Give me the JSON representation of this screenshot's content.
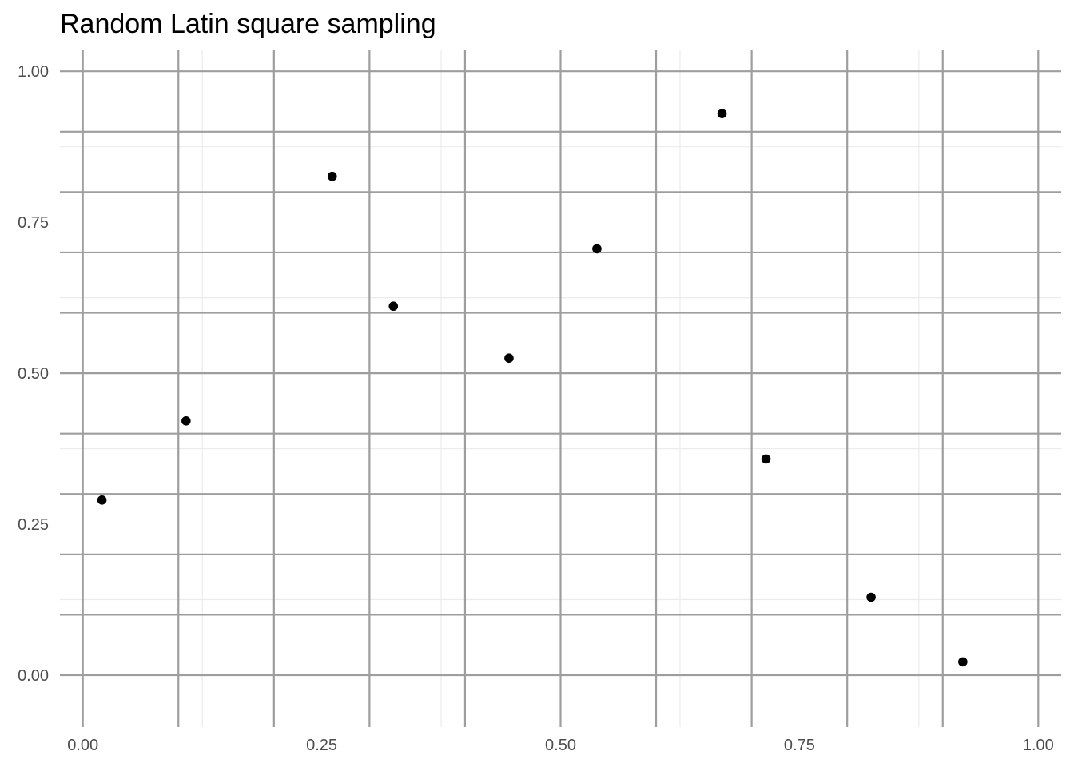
{
  "chart_data": {
    "type": "scatter",
    "title": "Random Latin square sampling",
    "xlabel": "",
    "ylabel": "",
    "xlim": [
      -0.024,
      1.024
    ],
    "ylim": [
      -0.086,
      1.036
    ],
    "x_ticks": [
      0.0,
      0.25,
      0.5,
      0.75,
      1.0
    ],
    "x_tick_labels": [
      "0.00",
      "0.25",
      "0.50",
      "0.75",
      "1.00"
    ],
    "y_ticks": [
      0.0,
      0.25,
      0.5,
      0.75,
      1.0
    ],
    "y_tick_labels": [
      "0.00",
      "0.25",
      "0.50",
      "0.75",
      "1.00"
    ],
    "x_minor_gridlines": [
      0.125,
      0.375,
      0.625,
      0.875
    ],
    "y_minor_gridlines": [
      0.125,
      0.375,
      0.625,
      0.875
    ],
    "x_cell_lines": [
      0.0,
      0.1,
      0.2,
      0.3,
      0.4,
      0.5,
      0.6,
      0.7,
      0.8,
      0.9,
      1.0
    ],
    "y_cell_lines": [
      0.0,
      0.1,
      0.2,
      0.3,
      0.4,
      0.5,
      0.6,
      0.7,
      0.8,
      0.9,
      1.0
    ],
    "grid": true,
    "legend": "none",
    "point_color": "#000000",
    "grid_major_color": "#9e9e9e",
    "grid_minor_color": "#ebebeb",
    "series": [
      {
        "x": [
          0.02,
          0.108,
          0.261,
          0.325,
          0.446,
          0.538,
          0.669,
          0.715,
          0.825,
          0.921
        ],
        "y": [
          0.29,
          0.421,
          0.826,
          0.611,
          0.525,
          0.706,
          0.93,
          0.358,
          0.129,
          0.022
        ]
      }
    ]
  }
}
